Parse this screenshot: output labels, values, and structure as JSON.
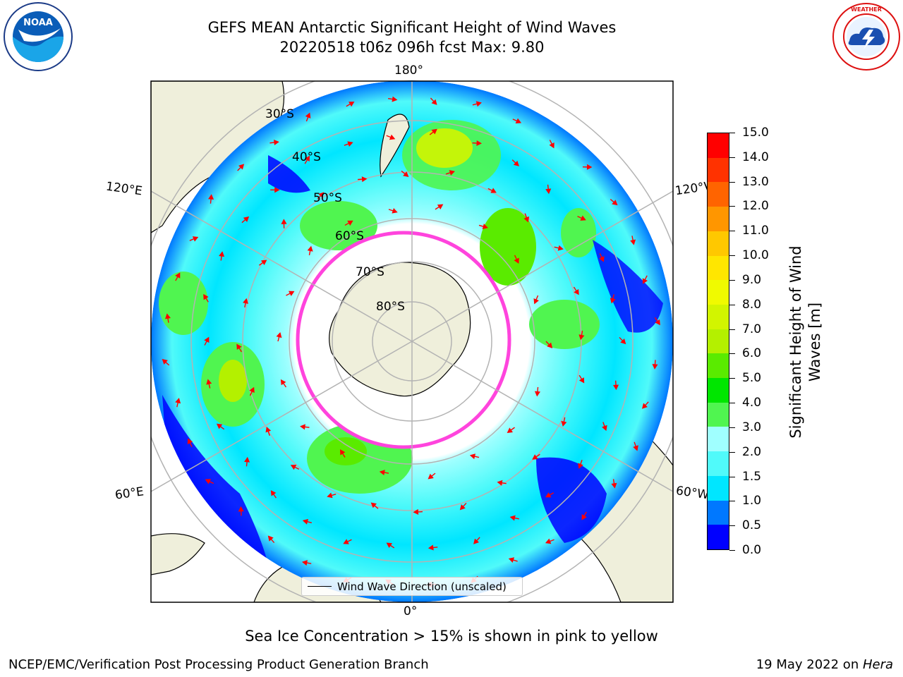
{
  "title": {
    "line1": "GEFS MEAN Antarctic Significant Height of Wind Waves",
    "line2": "20220518 t06z 096h fcst   Max: 9.80"
  },
  "logos": {
    "left_icon": "noaa-logo",
    "left_text": "NOAA",
    "right_icon": "nws-logo",
    "right_text": "NATIONAL WEATHER SERVICE"
  },
  "map": {
    "longitude_labels": {
      "top": "180°",
      "bottom": "0°",
      "upper_left": "120°E",
      "upper_right": "120°W",
      "lower_left": "60°E",
      "lower_right": "60°W"
    },
    "latitude_labels": [
      "30°S",
      "40°S",
      "50°S",
      "60°S",
      "70°S",
      "80°S"
    ],
    "legend_label": "Wind Wave Direction (unscaled)"
  },
  "colorbar": {
    "title": "Significant Height of Wind Waves [m]",
    "ticks": [
      "0.0",
      "0.5",
      "1.0",
      "1.5",
      "2.0",
      "3.0",
      "4.0",
      "5.0",
      "6.0",
      "7.0",
      "8.0",
      "9.0",
      "10.0",
      "11.0",
      "12.0",
      "13.0",
      "14.0",
      "15.0"
    ],
    "colors": [
      "#0000ff",
      "#0078ff",
      "#00e6ff",
      "#50fafa",
      "#a0ffff",
      "#50f550",
      "#00e600",
      "#5aeb00",
      "#b4f000",
      "#d2f500",
      "#f0fa00",
      "#ffe600",
      "#ffc800",
      "#ff9600",
      "#ff6400",
      "#ff3200",
      "#ff0000"
    ]
  },
  "footer": {
    "note": "Sea Ice Concentration > 15% is shown in pink to yellow",
    "left": "NCEP/EMC/Verification Post Processing Product Generation Branch",
    "right_date": "19 May 2022 on ",
    "right_machine": "Hera"
  }
}
